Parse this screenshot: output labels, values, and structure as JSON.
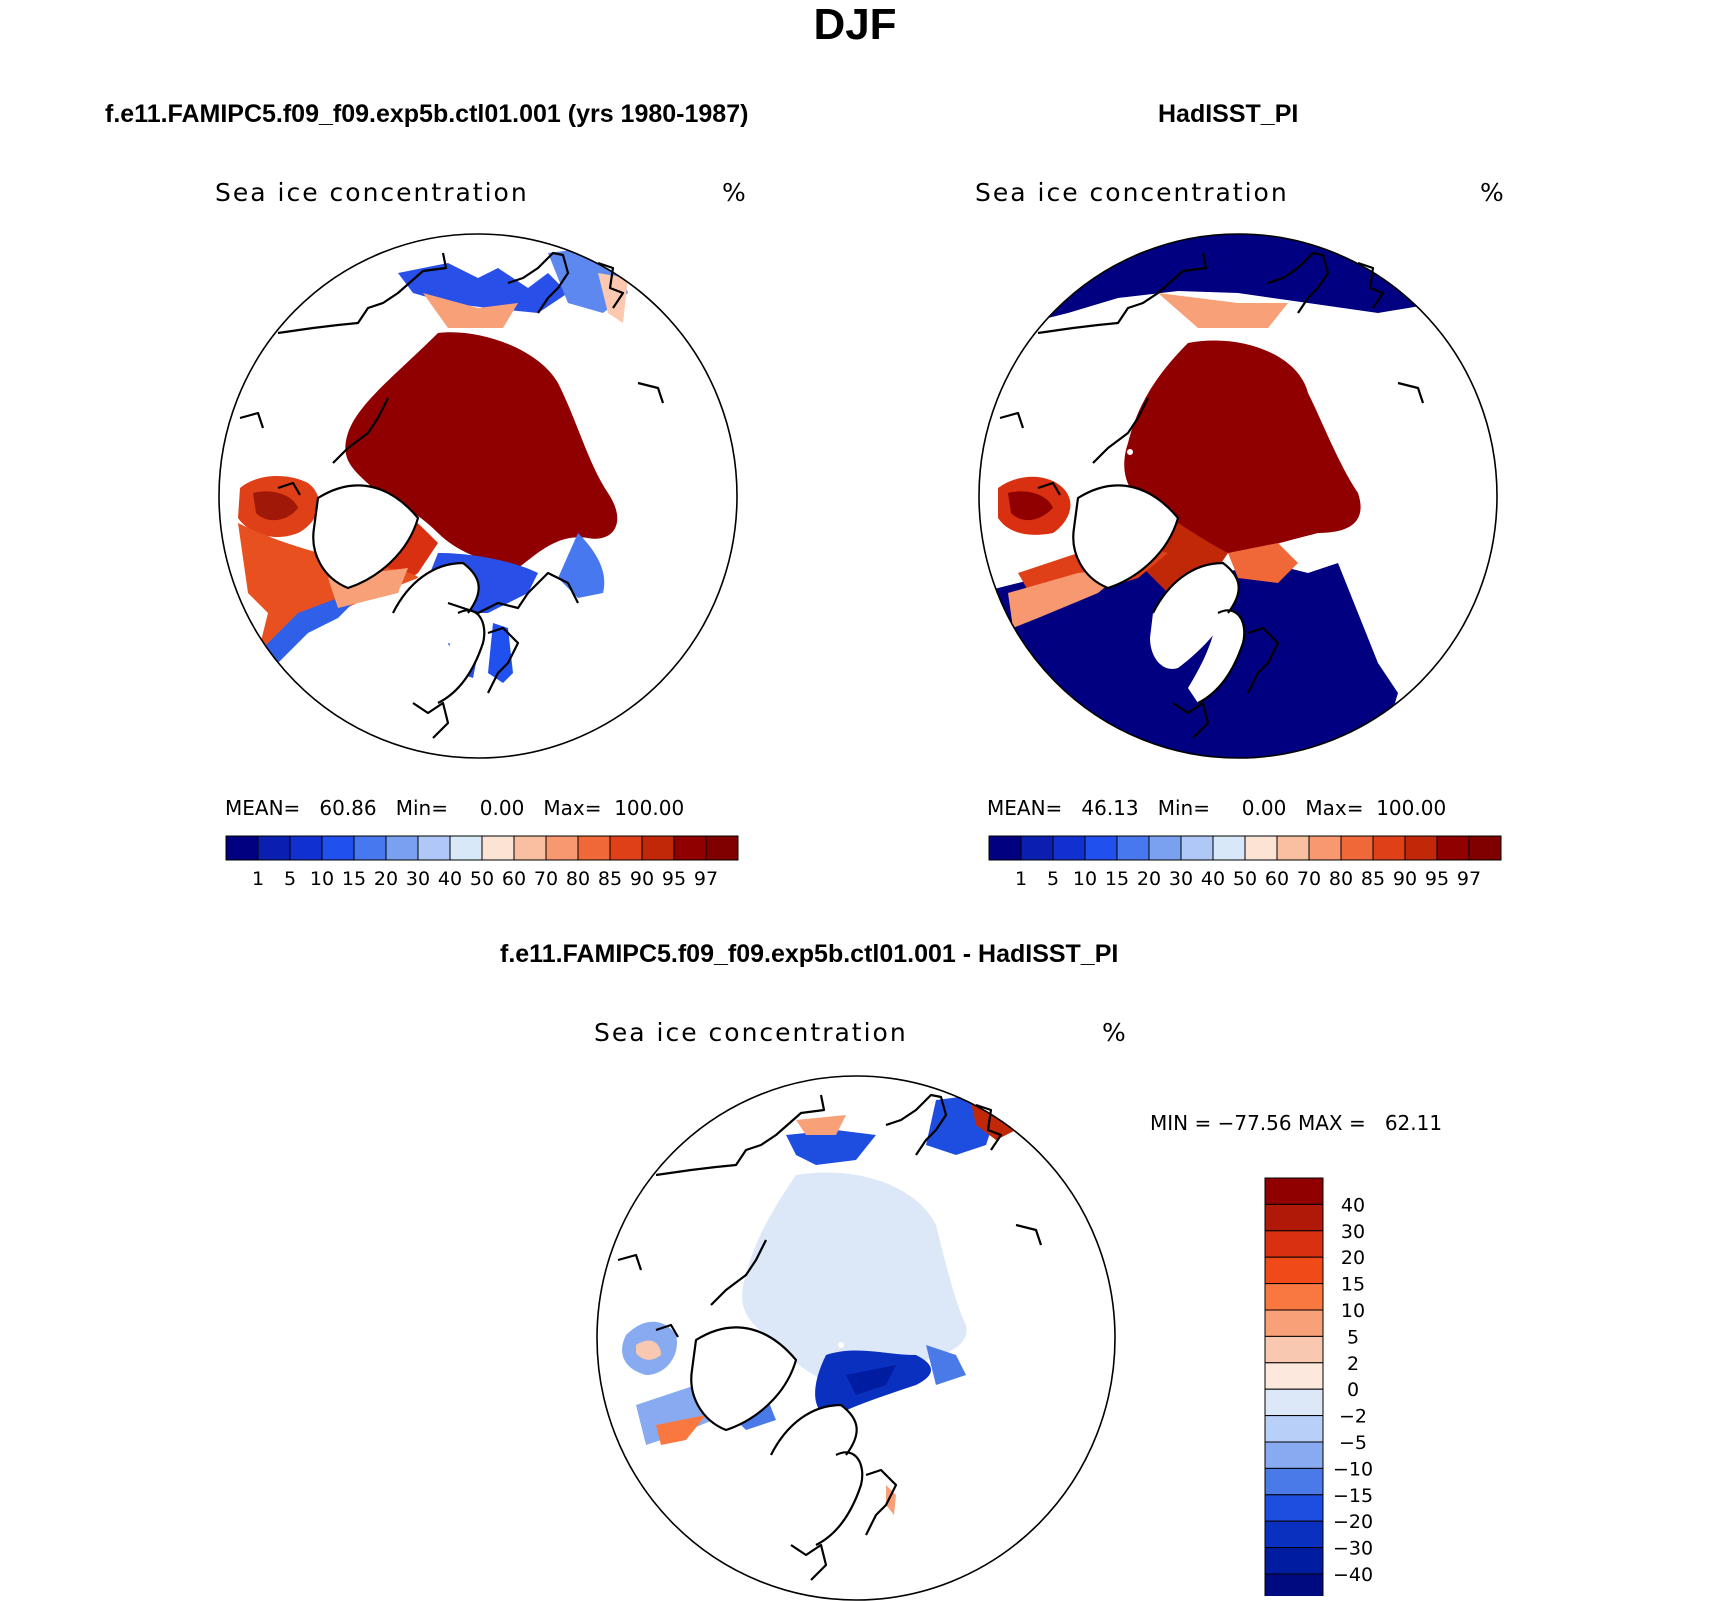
{
  "title": "DJF",
  "panels": [
    {
      "name": "model",
      "title": "f.e11.FAMIPC5.f09_f09.exp5b.ctl01.001 (yrs 1980-1987)",
      "variable": "Sea ice concentration",
      "units": "%",
      "stats": {
        "mean_label": "MEAN=",
        "mean": "60.86",
        "min_label": "Min=",
        "min": "0.00",
        "max_label": "Max=",
        "max": "100.00"
      }
    },
    {
      "name": "obs",
      "title": "HadISST_PI",
      "variable": "Sea ice concentration",
      "units": "%",
      "stats": {
        "mean_label": "MEAN=",
        "mean": "46.13",
        "min_label": "Min=",
        "min": "0.00",
        "max_label": "Max=",
        "max": "100.00"
      }
    },
    {
      "name": "diff",
      "title": "f.e11.FAMIPC5.f09_f09.exp5b.ctl01.001 - HadISST_PI",
      "variable": "Sea ice concentration",
      "units": "%",
      "stats": {
        "min_label": "MIN =",
        "min": "−77.56",
        "max_label": "MAX =",
        "max": "62.11"
      }
    }
  ],
  "chart_data": [
    {
      "type": "colorbar",
      "name": "abs-colorbar",
      "levels": [
        "1",
        "5",
        "10",
        "15",
        "20",
        "30",
        "40",
        "50",
        "60",
        "70",
        "80",
        "85",
        "90",
        "95",
        "97"
      ],
      "colors": [
        "#000080",
        "#0a1fb0",
        "#1030d0",
        "#2050ee",
        "#4878f0",
        "#7aa0f0",
        "#b0c8f8",
        "#d8e8f8",
        "#fce4d4",
        "#f8c0a0",
        "#f89870",
        "#f06838",
        "#e04018",
        "#c02808",
        "#900000",
        "#800000"
      ]
    },
    {
      "type": "colorbar",
      "name": "diff-colorbar",
      "levels": [
        "40",
        "30",
        "20",
        "15",
        "10",
        "5",
        "2",
        "0",
        "−2",
        "−5",
        "−10",
        "−15",
        "−20",
        "−30",
        "−40"
      ],
      "colors": [
        "#900000",
        "#b01808",
        "#d83010",
        "#f04a18",
        "#f87840",
        "#f8a078",
        "#f8c8b0",
        "#fce8dc",
        "#dce8f8",
        "#b8d0f8",
        "#88aaf0",
        "#4a7ae8",
        "#1e4ee0",
        "#0a30c0",
        "#001ca0",
        "#000a80"
      ]
    }
  ]
}
